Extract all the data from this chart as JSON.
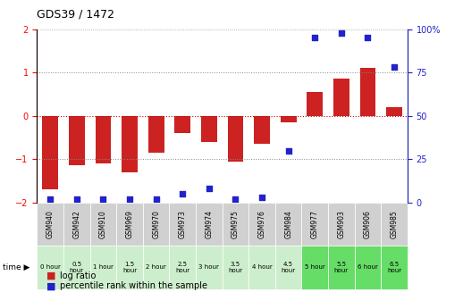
{
  "title": "GDS39 / 1472",
  "samples": [
    "GSM940",
    "GSM942",
    "GSM910",
    "GSM969",
    "GSM970",
    "GSM973",
    "GSM974",
    "GSM975",
    "GSM976",
    "GSM984",
    "GSM977",
    "GSM903",
    "GSM906",
    "GSM985"
  ],
  "time_labels": [
    "0 hour",
    "0.5\nhour",
    "1 hour",
    "1.5\nhour",
    "2 hour",
    "2.5\nhour",
    "3 hour",
    "3.5\nhour",
    "4 hour",
    "4.5\nhour",
    "5 hour",
    "5.5\nhour",
    "6 hour",
    "6.5\nhour"
  ],
  "log_ratio": [
    -1.7,
    -1.15,
    -1.1,
    -1.3,
    -0.85,
    -0.4,
    -0.6,
    -1.05,
    -0.65,
    -0.15,
    0.55,
    0.85,
    1.1,
    0.2
  ],
  "percentile": [
    2,
    2,
    2,
    2,
    2,
    5,
    8,
    2,
    3,
    30,
    95,
    98,
    95,
    78
  ],
  "ylim_left": [
    -2,
    2
  ],
  "ylim_right": [
    0,
    100
  ],
  "yticks_left": [
    -2,
    -1,
    0,
    1,
    2
  ],
  "yticks_right": [
    0,
    25,
    50,
    75,
    100
  ],
  "yticklabels_right": [
    "0",
    "25",
    "50",
    "75",
    "100%"
  ],
  "bar_color": "#cc2222",
  "dot_color": "#2222cc",
  "bg_color_gray": "#d0d0d0",
  "bg_color_light_green": "#ccffcc",
  "bg_color_green": "#66dd66",
  "dotted_line_color": "#888888",
  "zero_line_color": "#cc0000",
  "legend_red": "log ratio",
  "legend_blue": "percentile rank within the sample"
}
